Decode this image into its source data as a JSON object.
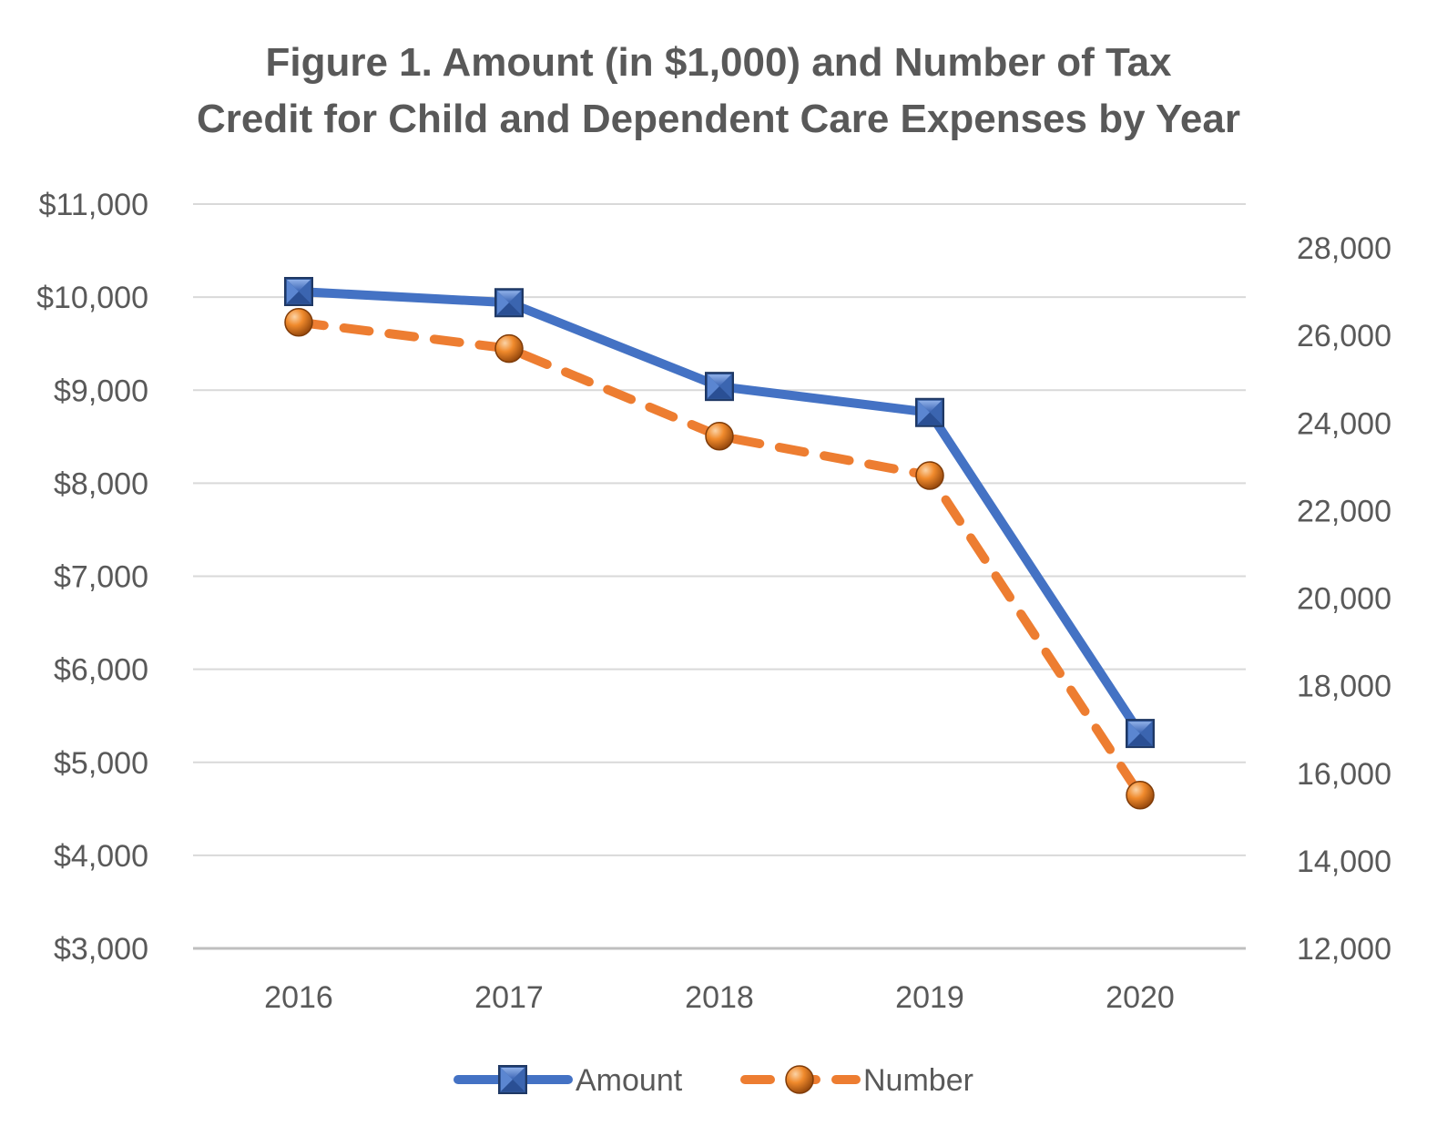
{
  "chart_data": {
    "type": "line",
    "title_line1": "Figure 1. Amount (in $1,000) and Number of Tax",
    "title_line2": "Credit for Child and Dependent Care Expenses by Year",
    "categories": [
      "2016",
      "2017",
      "2018",
      "2019",
      "2020"
    ],
    "y_left": {
      "min": 3000,
      "max": 11000,
      "step": 1000,
      "ticks": [
        "$3,000",
        "$4,000",
        "$5,000",
        "$6,000",
        "$7,000",
        "$8,000",
        "$9,000",
        "$10,000",
        "$11,000"
      ]
    },
    "y_right": {
      "min": 12000,
      "max": 29000,
      "step": 2000,
      "ticks": [
        "12,000",
        "14,000",
        "16,000",
        "18,000",
        "20,000",
        "22,000",
        "24,000",
        "26,000",
        "28,000"
      ]
    },
    "grid": true,
    "legend_position": "bottom",
    "series": [
      {
        "name": "Amount",
        "axis": "left",
        "values": [
          10060,
          9940,
          9040,
          8760,
          5310
        ],
        "color": "#4472C4",
        "style": "solid",
        "marker": "square"
      },
      {
        "name": "Number",
        "axis": "right",
        "values": [
          26300,
          25700,
          23700,
          22800,
          15500
        ],
        "color": "#ED7D31",
        "style": "dashed",
        "marker": "circle"
      }
    ]
  }
}
